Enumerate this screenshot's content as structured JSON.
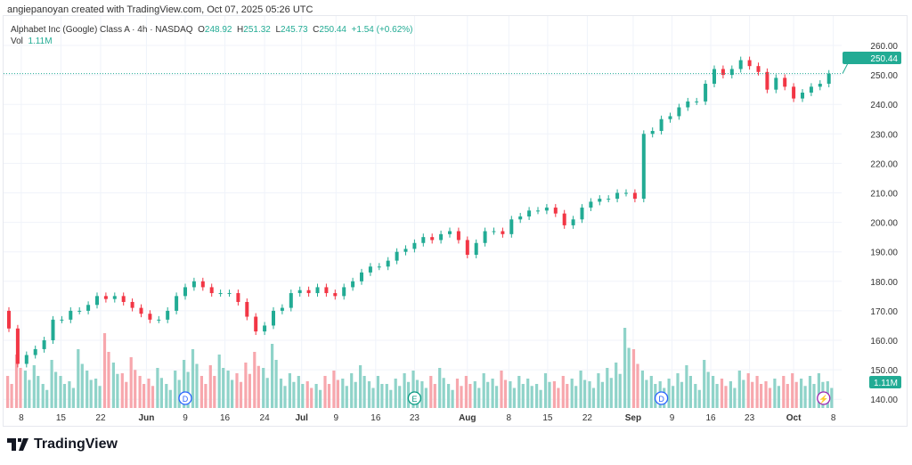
{
  "credit": "angiepanoyan created with TradingView.com, Oct 07, 2025 05:26 UTC",
  "legend": {
    "symbol": "Alphabet Inc (Google) Class A · 4h · NASDAQ",
    "o_label": "O",
    "o": "248.92",
    "h_label": "H",
    "h": "251.32",
    "l_label": "L",
    "l": "245.73",
    "c_label": "C",
    "c": "250.44",
    "change": "+1.54 (+0.62%)",
    "vol_label": "Vol",
    "vol": "1.11M"
  },
  "logo": "TradingView",
  "colors": {
    "up": "#22ab94",
    "down": "#f23645",
    "vol_up": "#8fd3c9",
    "vol_down": "#f7a7ad"
  },
  "chart_data": {
    "type": "candlestick",
    "y_ticks": [
      "260.00",
      "250.00",
      "240.00",
      "230.00",
      "220.00",
      "210.00",
      "200.00",
      "190.00",
      "180.00",
      "170.00",
      "160.00",
      "150.00",
      "140.00"
    ],
    "ylim": [
      138,
      263
    ],
    "last_price_label": "250.44",
    "last_price": 250.44,
    "volume_label": "1.11M",
    "x_ticks": [
      {
        "label": "8",
        "bold": false,
        "i": 1.4
      },
      {
        "label": "15",
        "bold": false,
        "i": 5.9
      },
      {
        "label": "22",
        "bold": false,
        "i": 10.4
      },
      {
        "label": "Jun",
        "bold": true,
        "i": 15.6
      },
      {
        "label": "9",
        "bold": false,
        "i": 20
      },
      {
        "label": "16",
        "bold": false,
        "i": 24.5
      },
      {
        "label": "24",
        "bold": false,
        "i": 29
      },
      {
        "label": "Jul",
        "bold": true,
        "i": 33.2
      },
      {
        "label": "9",
        "bold": false,
        "i": 37.1
      },
      {
        "label": "16",
        "bold": false,
        "i": 41.6
      },
      {
        "label": "23",
        "bold": false,
        "i": 46
      },
      {
        "label": "Aug",
        "bold": true,
        "i": 52
      },
      {
        "label": "8",
        "bold": false,
        "i": 56.7
      },
      {
        "label": "15",
        "bold": false,
        "i": 61.1
      },
      {
        "label": "22",
        "bold": false,
        "i": 65.6
      },
      {
        "label": "Sep",
        "bold": true,
        "i": 70.8
      },
      {
        "label": "9",
        "bold": false,
        "i": 75.2
      },
      {
        "label": "16",
        "bold": false,
        "i": 79.6
      },
      {
        "label": "23",
        "bold": false,
        "i": 84
      },
      {
        "label": "Oct",
        "bold": true,
        "i": 89
      },
      {
        "label": "8",
        "bold": false,
        "i": 93.5
      }
    ],
    "closes": [
      164,
      152,
      155,
      157,
      160,
      167,
      167,
      170,
      170,
      172,
      175,
      174,
      175,
      173,
      171,
      169,
      167,
      167,
      170,
      175,
      178,
      180,
      178,
      176,
      176,
      176,
      173,
      168,
      163,
      165,
      170,
      171,
      176,
      177,
      176,
      178,
      176,
      175,
      178,
      180,
      183,
      185,
      185,
      187,
      190,
      191,
      193,
      195,
      194,
      196,
      197,
      194,
      189,
      193,
      197,
      197,
      196,
      201,
      202,
      204,
      204,
      205,
      203,
      199,
      201,
      205,
      207,
      208,
      208,
      210,
      210,
      208,
      230,
      231,
      235,
      236,
      239,
      241,
      241,
      247,
      252,
      250,
      252,
      255,
      253,
      251,
      245,
      249,
      246,
      242,
      244,
      246,
      247,
      250.44
    ],
    "volumes": [
      12,
      20,
      14,
      16,
      9,
      18,
      12,
      10,
      22,
      14,
      11,
      28,
      17,
      13,
      19,
      12,
      11,
      15,
      9,
      14,
      18,
      22,
      12,
      16,
      20,
      14,
      13,
      17,
      21,
      15,
      24,
      11,
      13,
      12,
      10,
      9,
      12,
      14,
      11,
      13,
      16,
      10,
      12,
      9,
      11,
      13,
      14,
      10,
      12,
      15,
      9,
      11,
      12,
      10,
      13,
      11,
      14,
      10,
      12,
      11,
      9,
      13,
      10,
      12,
      11,
      14,
      10,
      13,
      15,
      17,
      30,
      22,
      14,
      12,
      10,
      11,
      13,
      16,
      9,
      18,
      12,
      11,
      10,
      14,
      13,
      12,
      10,
      11,
      12,
      13,
      11,
      12,
      13,
      10
    ],
    "markers": [
      {
        "label": "D",
        "i": 20,
        "color": "#2962ff"
      },
      {
        "label": "E",
        "i": 46,
        "color": "#089981"
      },
      {
        "label": "D",
        "i": 74,
        "color": "#2962ff"
      },
      {
        "label": "⚡",
        "i": 92.4,
        "color": "#9c27b0"
      }
    ]
  }
}
